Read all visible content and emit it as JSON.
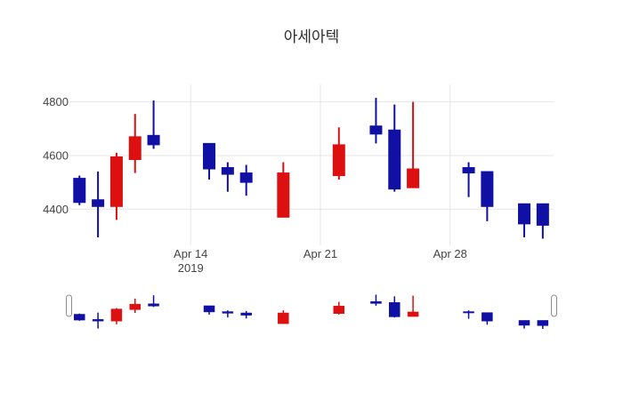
{
  "title": "아세아텍",
  "colors": {
    "increasing": "#dc1010",
    "decreasing": "#1010a5",
    "grid": "#e5e5e5",
    "tick_text": "#444444",
    "title_text": "#2f2f2f",
    "background": "#ffffff",
    "grabber_fill": "#ffffff",
    "grabber_border": "#8c8c8c"
  },
  "chart_data": {
    "type": "candlestick",
    "title": "아세아텍",
    "xlabel": "",
    "ylabel": "",
    "legend": false,
    "grid": true,
    "rangeslider": true,
    "y_ticks": [
      4400,
      4600,
      4800
    ],
    "y_range": [
      4280,
      4865
    ],
    "x_range": [
      "2019-04-07T11:00:00",
      "2019-05-03T14:00:00"
    ],
    "x_ticks": [
      {
        "date": "2019-04-14",
        "label": "Apr 14",
        "sublabel": "2019"
      },
      {
        "date": "2019-04-21",
        "label": "Apr 21",
        "sublabel": ""
      },
      {
        "date": "2019-04-28",
        "label": "Apr 28",
        "sublabel": ""
      }
    ],
    "ohlc": [
      {
        "date": "2019-04-08",
        "open": 4515,
        "high": 4525,
        "low": 4415,
        "close": 4425
      },
      {
        "date": "2019-04-09",
        "open": 4435,
        "high": 4540,
        "low": 4295,
        "close": 4410
      },
      {
        "date": "2019-04-10",
        "open": 4410,
        "high": 4610,
        "low": 4360,
        "close": 4595
      },
      {
        "date": "2019-04-11",
        "open": 4585,
        "high": 4755,
        "low": 4535,
        "close": 4670
      },
      {
        "date": "2019-04-12",
        "open": 4675,
        "high": 4805,
        "low": 4625,
        "close": 4640
      },
      {
        "date": "2019-04-15",
        "open": 4645,
        "high": 4645,
        "low": 4510,
        "close": 4550
      },
      {
        "date": "2019-04-16",
        "open": 4555,
        "high": 4575,
        "low": 4465,
        "close": 4530
      },
      {
        "date": "2019-04-17",
        "open": 4535,
        "high": 4565,
        "low": 4450,
        "close": 4500
      },
      {
        "date": "2019-04-19",
        "open": 4370,
        "high": 4575,
        "low": 4370,
        "close": 4535
      },
      {
        "date": "2019-04-22",
        "open": 4525,
        "high": 4705,
        "low": 4510,
        "close": 4640
      },
      {
        "date": "2019-04-24",
        "open": 4710,
        "high": 4815,
        "low": 4645,
        "close": 4680
      },
      {
        "date": "2019-04-25",
        "open": 4695,
        "high": 4790,
        "low": 4465,
        "close": 4475
      },
      {
        "date": "2019-04-26",
        "open": 4480,
        "high": 4800,
        "low": 4480,
        "close": 4550
      },
      {
        "date": "2019-04-29",
        "open": 4555,
        "high": 4575,
        "low": 4445,
        "close": 4535
      },
      {
        "date": "2019-04-30",
        "open": 4540,
        "high": 4540,
        "low": 4355,
        "close": 4410
      },
      {
        "date": "2019-05-02",
        "open": 4420,
        "high": 4420,
        "low": 4295,
        "close": 4345
      },
      {
        "date": "2019-05-03",
        "open": 4420,
        "high": 4420,
        "low": 4290,
        "close": 4340
      }
    ]
  }
}
